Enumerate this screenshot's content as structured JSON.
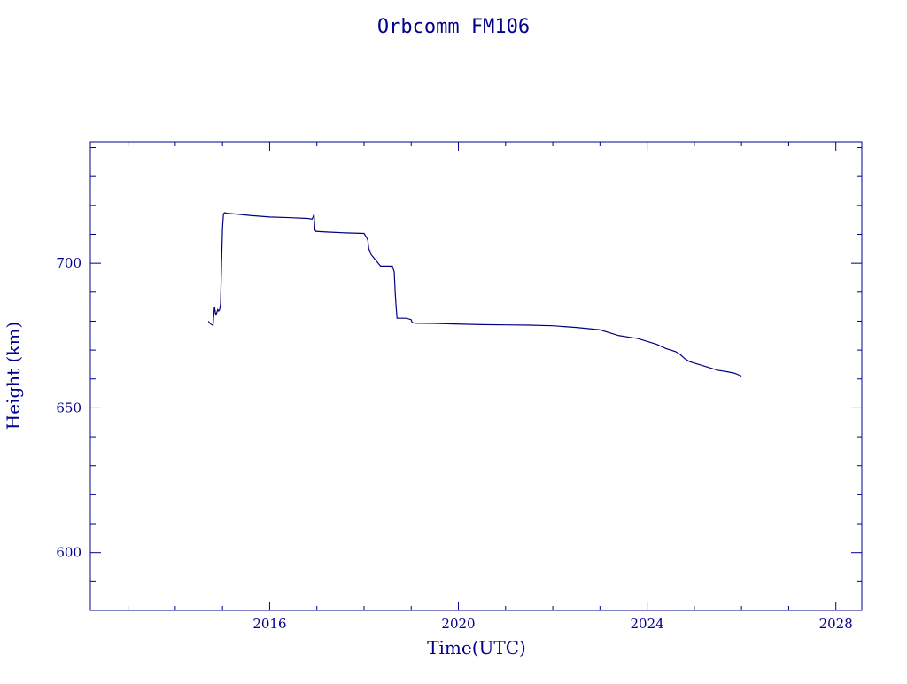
{
  "chart_data": {
    "type": "line",
    "title": "Orbcomm FM106",
    "xlabel": "Time(UTC)",
    "ylabel": "Height (km)",
    "xlim": [
      2012.2,
      2028.55
    ],
    "ylim": [
      580,
      742
    ],
    "x_ticks": [
      2016,
      2020,
      2024,
      2028
    ],
    "x_tick_labels": [
      "2016",
      "2020",
      "2024",
      "2028"
    ],
    "y_ticks": [
      600,
      650,
      700
    ],
    "y_tick_labels": [
      "600",
      "650",
      "700"
    ],
    "grid": false,
    "colors": {
      "axis": "#00008b",
      "line": "#000080",
      "background": "#ffffff"
    },
    "series": [
      {
        "x": [
          2014.7,
          2014.75,
          2014.8,
          2014.81,
          2014.83,
          2014.84,
          2014.86,
          2014.88,
          2014.9,
          2014.92,
          2014.94,
          2014.96,
          2014.98,
          2015.0,
          2015.02,
          2015.04,
          2015.1,
          2015.3,
          2015.6,
          2016.0,
          2016.4,
          2016.8,
          2016.9,
          2016.92,
          2016.94,
          2016.96,
          2016.98,
          2017.0,
          2017.2,
          2017.6,
          2018.0,
          2018.05,
          2018.08,
          2018.1,
          2018.13,
          2018.15,
          2018.2,
          2018.25,
          2018.3,
          2018.35,
          2018.4,
          2018.6,
          2018.62,
          2018.64,
          2018.66,
          2018.68,
          2018.7,
          2018.72,
          2018.74,
          2018.8,
          2018.9,
          2019.0,
          2019.02,
          2019.1,
          2019.5,
          2020.0,
          2020.5,
          2021.0,
          2021.5,
          2022.0,
          2022.5,
          2023.0,
          2023.2,
          2023.4,
          2023.6,
          2023.8,
          2024.0,
          2024.2,
          2024.4,
          2024.6,
          2024.7,
          2024.8,
          2024.9,
          2025.0,
          2025.2,
          2025.3,
          2025.4,
          2025.5,
          2025.7,
          2025.85,
          2026.0
        ],
        "y": [
          680,
          679,
          678.5,
          681,
          685,
          684,
          682,
          683,
          684,
          683.5,
          684,
          686,
          700,
          712,
          717,
          717.5,
          717.3,
          717,
          716.5,
          716,
          715.8,
          715.5,
          715.3,
          716,
          717,
          711.5,
          711,
          711,
          710.8,
          710.5,
          710.3,
          709,
          708,
          705,
          704,
          703,
          702,
          701,
          700,
          699,
          699,
          699,
          698,
          697,
          690,
          685,
          681,
          681,
          681,
          681,
          681,
          680.5,
          679.5,
          679.3,
          679.2,
          679,
          678.8,
          678.7,
          678.6,
          678.4,
          677.8,
          677,
          676,
          675,
          674.5,
          674,
          673,
          672,
          670.5,
          669.5,
          668.5,
          667,
          666,
          665.5,
          664.5,
          664,
          663.5,
          663,
          662.5,
          662,
          661
        ]
      }
    ]
  }
}
